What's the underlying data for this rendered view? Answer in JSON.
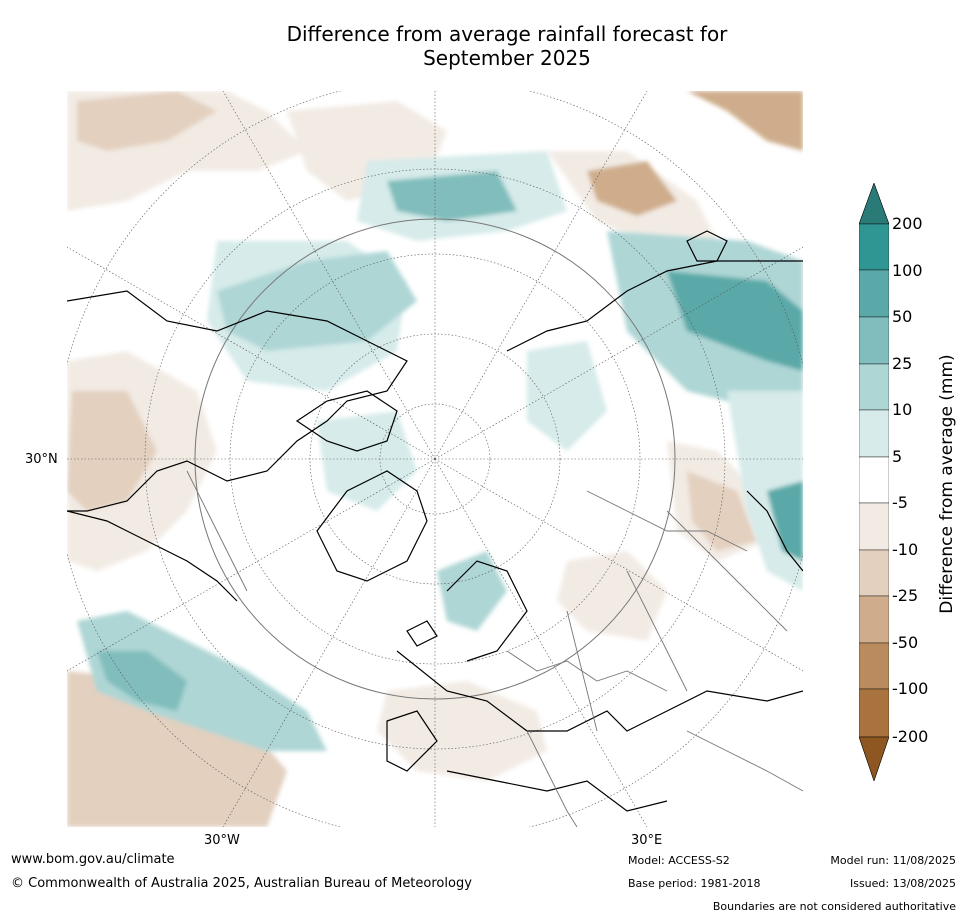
{
  "title_line1": "Difference from average rainfall forecast for",
  "title_line2": "September 2025",
  "lat_label": "30°N",
  "lon_labels": {
    "west": "30°W",
    "east": "30°E"
  },
  "colorbar": {
    "title": "Difference from average (mm)",
    "ticks": [
      "200",
      "100",
      "50",
      "25",
      "10",
      "5",
      "-5",
      "-10",
      "-25",
      "-50",
      "-100",
      "-200"
    ],
    "colors": {
      "over": "#2a7b78",
      "c_100_200": "#2f9694",
      "c_50_100": "#5aa9a8",
      "c_25_50": "#80bdbc",
      "c_10_25": "#aed6d5",
      "c_5_10": "#d6ebea",
      "neutral": "#ffffff",
      "c_m5_m10": "#f2ebe4",
      "c_m10_m25": "#e3d0bf",
      "c_m25_m50": "#cfad8c",
      "c_m50_m100": "#bb8b60",
      "c_m100_m200": "#a9733f",
      "under": "#8e5620"
    }
  },
  "footer": {
    "website": "www.bom.gov.au/climate",
    "copyright": "© Commonwealth of Australia 2025, Australian Bureau of Meteorology",
    "model": "Model: ACCESS-S2",
    "base_period": "Base period: 1981-2018",
    "model_run": "Model run: 11/08/2025",
    "issued": "Issued: 13/08/2025",
    "disclaimer": "Boundaries are not considered authoritative"
  }
}
